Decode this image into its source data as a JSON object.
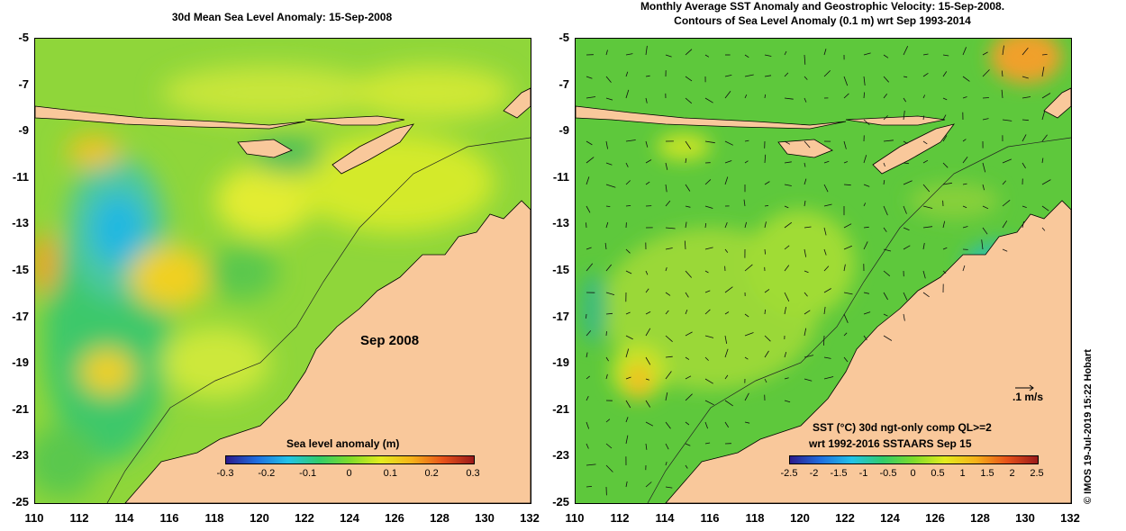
{
  "left_panel": {
    "title": "30d Mean Sea Level Anomaly: 15-Sep-2008",
    "date_label": "Sep 2008",
    "colorbar_label": "Sea level anomaly (m)",
    "colorbar_ticks": [
      "-0.3",
      "-0.2",
      "-0.1",
      "0",
      "0.1",
      "0.2",
      "0.3"
    ]
  },
  "right_panel": {
    "title_line1": "Monthly Average SST Anomaly  and Geostrophic Velocity: 15-Sep-2008.",
    "title_line2": "Contours of Sea Level Anomaly (0.1 m) wrt Sep 1993-2014",
    "scale_label": ".1 m/s",
    "colorbar_label_line1": "SST (°C) 30d ngt-only comp QL>=2",
    "colorbar_label_line2": "wrt 1992-2016 SSTAARS Sep 15",
    "colorbar_ticks": [
      "-2.5",
      "-2",
      "-1.5",
      "-1",
      "-0.5",
      "0",
      "0.5",
      "1",
      "1.5",
      "2",
      "2.5"
    ]
  },
  "axes": {
    "y_ticks": [
      "-5",
      "-7",
      "-9",
      "-11",
      "-13",
      "-15",
      "-17",
      "-19",
      "-21",
      "-23",
      "-25"
    ],
    "x_ticks": [
      "110",
      "112",
      "114",
      "116",
      "118",
      "120",
      "122",
      "124",
      "126",
      "128",
      "130",
      "132"
    ]
  },
  "credit": "© IMOS 19-Jul-2019 15:22 Hobart",
  "colors": {
    "land": "#f9c89b",
    "ocean_base": "#8fd63a",
    "colormap": [
      "#2b1a8c",
      "#1f6fe0",
      "#22c3e8",
      "#32cc6a",
      "#7fdc2a",
      "#e4ec1e",
      "#f6b21a",
      "#e8531a",
      "#9b1a1a"
    ]
  }
}
